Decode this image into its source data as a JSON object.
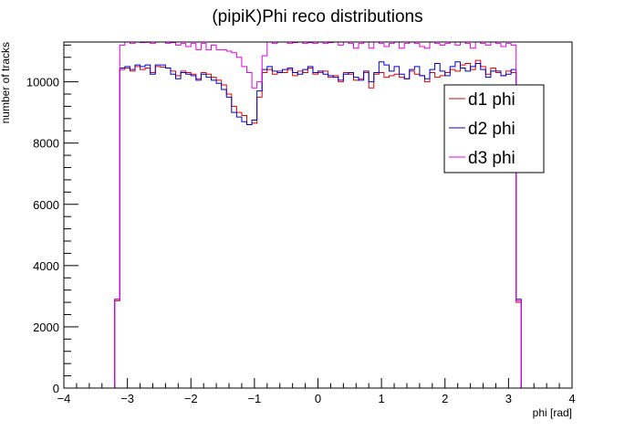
{
  "chart_data": {
    "type": "line",
    "title": "(pipiK)Phi reco distributions",
    "xlabel": "phi [rad]",
    "ylabel": "number of tracks",
    "xlim": [
      -4,
      4
    ],
    "ylim": [
      0,
      11300
    ],
    "xticks": [
      -4,
      -3,
      -2,
      -1,
      0,
      1,
      2,
      3,
      4
    ],
    "xtick_labels": [
      "−4",
      "−3",
      "−2",
      "−1",
      "0",
      "1",
      "2",
      "3",
      "4"
    ],
    "yticks": [
      0,
      2000,
      4000,
      6000,
      8000,
      10000
    ],
    "ytick_labels": [
      "0",
      "2000",
      "4000",
      "6000",
      "8000",
      "10000"
    ],
    "grid": false,
    "legend_position": "right",
    "bin_width": 0.08,
    "x": [
      -3.16,
      -3.08,
      -3.0,
      -2.92,
      -2.84,
      -2.76,
      -2.68,
      -2.6,
      -2.52,
      -2.44,
      -2.36,
      -2.28,
      -2.2,
      -2.12,
      -2.04,
      -1.96,
      -1.88,
      -1.8,
      -1.72,
      -1.64,
      -1.56,
      -1.48,
      -1.4,
      -1.32,
      -1.24,
      -1.16,
      -1.08,
      -1.0,
      -0.92,
      -0.84,
      -0.76,
      -0.68,
      -0.6,
      -0.52,
      -0.44,
      -0.36,
      -0.28,
      -0.2,
      -0.12,
      -0.04,
      0.04,
      0.12,
      0.2,
      0.28,
      0.36,
      0.44,
      0.52,
      0.6,
      0.68,
      0.76,
      0.84,
      0.92,
      1.0,
      1.08,
      1.16,
      1.24,
      1.32,
      1.4,
      1.48,
      1.56,
      1.64,
      1.72,
      1.8,
      1.88,
      1.96,
      2.04,
      2.12,
      2.2,
      2.28,
      2.36,
      2.44,
      2.52,
      2.6,
      2.68,
      2.76,
      2.84,
      2.92,
      3.0,
      3.08,
      3.16
    ],
    "series": [
      {
        "name": "d1 phi",
        "color": "#e60000",
        "values": [
          2850,
          10400,
          10450,
          10350,
          10500,
          10400,
          10450,
          10300,
          10500,
          10480,
          10450,
          10350,
          10200,
          10350,
          10300,
          10250,
          10100,
          10300,
          10250,
          10150,
          10050,
          9900,
          9600,
          9200,
          9000,
          8900,
          8600,
          8650,
          9500,
          10300,
          10400,
          10250,
          10350,
          10300,
          10400,
          10200,
          10350,
          10300,
          10450,
          10250,
          10300,
          10350,
          10150,
          10200,
          10000,
          10300,
          10250,
          10050,
          10100,
          10300,
          9800,
          10250,
          10300,
          10150,
          10200,
          10250,
          10150,
          10100,
          10350,
          10250,
          10200,
          10000,
          10300,
          10150,
          10200,
          10300,
          10400,
          10350,
          10550,
          10600,
          10400,
          10700,
          10500,
          10250,
          10450,
          10300,
          10200,
          10350,
          10300,
          2800
        ]
      },
      {
        "name": "d2 phi",
        "color": "#0000cc",
        "values": [
          2900,
          10450,
          10500,
          10400,
          10550,
          10500,
          10550,
          10250,
          10550,
          10550,
          10450,
          10250,
          10100,
          10300,
          10250,
          10200,
          10050,
          10250,
          10150,
          10050,
          9950,
          9750,
          9500,
          9000,
          8850,
          8700,
          8600,
          8750,
          9700,
          10400,
          10500,
          10350,
          10300,
          10400,
          10450,
          10300,
          10250,
          10400,
          10500,
          10300,
          10350,
          10250,
          10200,
          10150,
          10050,
          10250,
          10300,
          10150,
          10050,
          10350,
          10000,
          10300,
          10650,
          10550,
          10350,
          10500,
          10250,
          10100,
          10400,
          10500,
          10200,
          10100,
          10400,
          10600,
          10350,
          10200,
          10500,
          10650,
          10450,
          10350,
          10500,
          10600,
          10400,
          10150,
          10350,
          10350,
          10200,
          10250,
          10400,
          2900
        ]
      },
      {
        "name": "d3 phi",
        "color": "#e600e6",
        "values": [
          2900,
          11200,
          11300,
          11250,
          11300,
          11280,
          11290,
          11250,
          11300,
          11300,
          11260,
          11280,
          11200,
          11250,
          11150,
          11250,
          11050,
          11250,
          11050,
          11200,
          11050,
          11050,
          11000,
          10950,
          10800,
          10500,
          10300,
          9800,
          10000,
          10850,
          11300,
          11250,
          11300,
          11300,
          11250,
          11280,
          11300,
          11250,
          11280,
          11250,
          11300,
          11250,
          11280,
          11300,
          11200,
          11300,
          11250,
          11100,
          11250,
          11300,
          11100,
          11300,
          11250,
          11150,
          11250,
          11300,
          11100,
          11250,
          11300,
          11250,
          11150,
          11100,
          11300,
          11250,
          11200,
          11250,
          11300,
          11200,
          11300,
          11250,
          11100,
          11300,
          11250,
          11200,
          11300,
          11250,
          11150,
          11250,
          11200,
          2850
        ]
      }
    ]
  }
}
